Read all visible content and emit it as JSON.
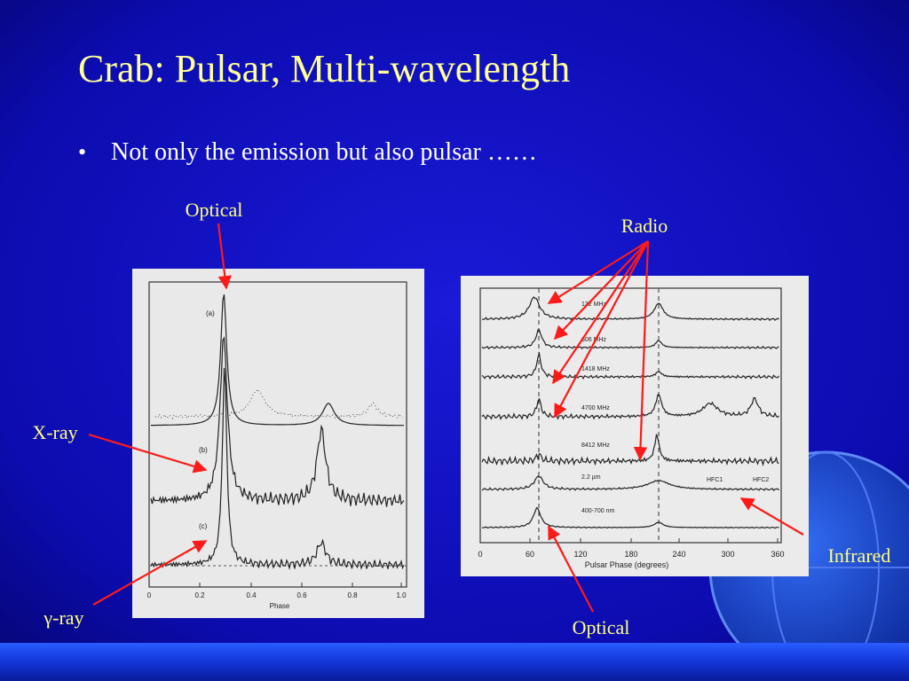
{
  "title": "Crab: Pulsar, Multi-wavelength",
  "bullets": [
    "Not only the emission but also pulsar ……"
  ],
  "left_figure": {
    "panels": [
      "(a)",
      "(b)",
      "(c)"
    ],
    "x_ticks": [
      "0",
      "0.2",
      "0.4",
      "0.6",
      "0.8",
      "1.0"
    ],
    "x_label": "Phase"
  },
  "right_figure": {
    "traces": [
      "132 MHz",
      "606 MHz",
      "1418 MHz",
      "4700 MHz",
      "8412 MHz",
      "2.2 µm",
      "400-700 nm"
    ],
    "markers": [
      "HFC1",
      "HFC2"
    ],
    "x_ticks": [
      "0",
      "60",
      "120",
      "180",
      "240",
      "300",
      "360"
    ],
    "x_label": "Pulsar Phase (degrees)"
  },
  "annotations": {
    "optical_left": "Optical",
    "radio": "Radio",
    "x_ray": "X-ray",
    "infrared": "Infrared",
    "gamma_ray": "γ-ray",
    "optical_right": "Optical"
  }
}
